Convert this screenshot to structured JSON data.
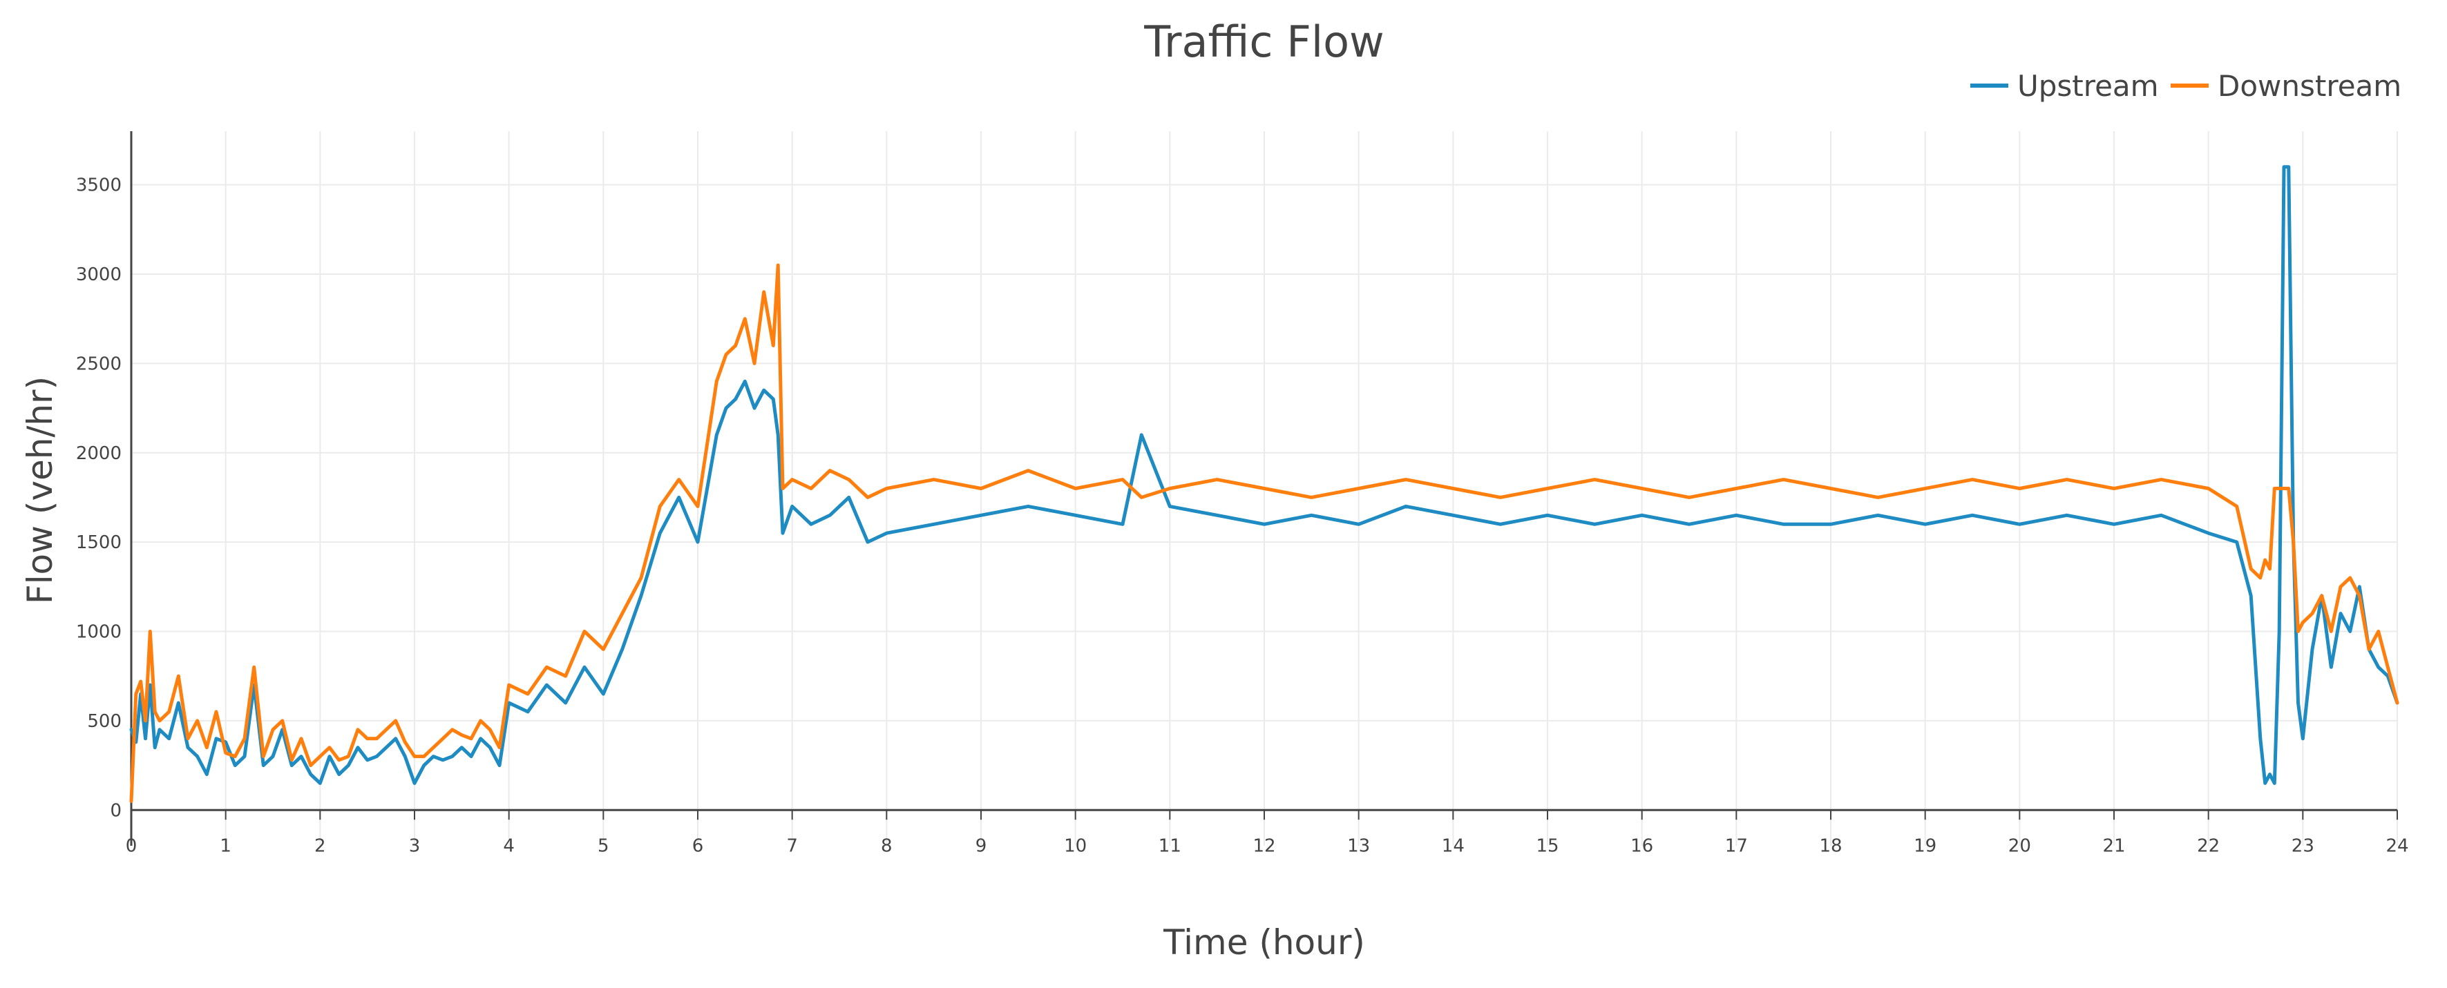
{
  "chart_data": {
    "type": "line",
    "title": "Traffic Flow",
    "xlabel": "Time (hour)",
    "ylabel": "Flow (veh/hr)",
    "xlim": [
      0,
      24
    ],
    "ylim": [
      -200,
      3800
    ],
    "x_ticks": [
      0,
      1,
      2,
      3,
      4,
      5,
      6,
      7,
      8,
      9,
      10,
      11,
      12,
      13,
      14,
      15,
      16,
      17,
      18,
      19,
      20,
      21,
      22,
      23,
      24
    ],
    "y_ticks": [
      0,
      500,
      1000,
      1500,
      2000,
      2500,
      3000,
      3500
    ],
    "grid": true,
    "legend_position": "top-right",
    "series": [
      {
        "name": "Upstream",
        "color": "#1f8bc3",
        "x": [
          0,
          0.05,
          0.1,
          0.15,
          0.2,
          0.25,
          0.3,
          0.4,
          0.5,
          0.6,
          0.7,
          0.8,
          0.9,
          1.0,
          1.1,
          1.2,
          1.3,
          1.4,
          1.5,
          1.6,
          1.7,
          1.8,
          1.9,
          2.0,
          2.1,
          2.2,
          2.3,
          2.4,
          2.5,
          2.6,
          2.7,
          2.8,
          2.9,
          3.0,
          3.1,
          3.2,
          3.3,
          3.4,
          3.5,
          3.6,
          3.7,
          3.8,
          3.9,
          4.0,
          4.2,
          4.4,
          4.6,
          4.8,
          5.0,
          5.2,
          5.4,
          5.6,
          5.8,
          6.0,
          6.2,
          6.3,
          6.4,
          6.5,
          6.6,
          6.7,
          6.8,
          6.85,
          6.9,
          7.0,
          7.2,
          7.4,
          7.6,
          7.8,
          8.0,
          8.5,
          9.0,
          9.5,
          10.0,
          10.5,
          10.7,
          11.0,
          11.5,
          12.0,
          12.5,
          13.0,
          13.5,
          14.0,
          14.5,
          15.0,
          15.5,
          16.0,
          16.5,
          17.0,
          17.5,
          18.0,
          18.5,
          19.0,
          19.5,
          20.0,
          20.5,
          21.0,
          21.5,
          22.0,
          22.3,
          22.45,
          22.55,
          22.6,
          22.65,
          22.7,
          22.75,
          22.8,
          22.85,
          22.9,
          22.95,
          23.0,
          23.1,
          23.2,
          23.3,
          23.4,
          23.5,
          23.6,
          23.7,
          23.8,
          23.9,
          24.0
        ],
        "values": [
          450,
          380,
          650,
          400,
          700,
          350,
          450,
          400,
          600,
          350,
          300,
          200,
          400,
          380,
          250,
          300,
          700,
          250,
          300,
          450,
          250,
          300,
          200,
          150,
          300,
          200,
          250,
          350,
          280,
          300,
          350,
          400,
          300,
          150,
          250,
          300,
          280,
          300,
          350,
          300,
          400,
          350,
          250,
          600,
          550,
          700,
          600,
          800,
          650,
          900,
          1200,
          1550,
          1750,
          1500,
          2100,
          2250,
          2300,
          2400,
          2250,
          2350,
          2300,
          2100,
          1550,
          1700,
          1600,
          1650,
          1750,
          1500,
          1550,
          1600,
          1650,
          1700,
          1650,
          1600,
          2100,
          1700,
          1650,
          1600,
          1650,
          1600,
          1700,
          1650,
          1600,
          1650,
          1600,
          1650,
          1600,
          1650,
          1600,
          1600,
          1650,
          1600,
          1650,
          1600,
          1650,
          1600,
          1650,
          1550,
          1500,
          1200,
          400,
          150,
          200,
          150,
          1000,
          3600,
          3600,
          1500,
          600,
          400,
          900,
          1200,
          800,
          1100,
          1000,
          1250,
          900,
          800,
          750,
          600
        ]
      },
      {
        "name": "Downstream",
        "color": "#ff7f0e",
        "x": [
          0,
          0.05,
          0.1,
          0.15,
          0.2,
          0.25,
          0.3,
          0.4,
          0.5,
          0.6,
          0.7,
          0.8,
          0.9,
          1.0,
          1.1,
          1.2,
          1.3,
          1.4,
          1.5,
          1.6,
          1.7,
          1.8,
          1.9,
          2.0,
          2.1,
          2.2,
          2.3,
          2.4,
          2.5,
          2.6,
          2.7,
          2.8,
          2.9,
          3.0,
          3.1,
          3.2,
          3.3,
          3.4,
          3.5,
          3.6,
          3.7,
          3.8,
          3.9,
          4.0,
          4.2,
          4.4,
          4.6,
          4.8,
          5.0,
          5.2,
          5.4,
          5.6,
          5.8,
          6.0,
          6.2,
          6.3,
          6.4,
          6.5,
          6.6,
          6.7,
          6.8,
          6.85,
          6.9,
          7.0,
          7.2,
          7.4,
          7.6,
          7.8,
          8.0,
          8.5,
          9.0,
          9.5,
          10.0,
          10.5,
          10.7,
          11.0,
          11.5,
          12.0,
          12.5,
          13.0,
          13.5,
          14.0,
          14.5,
          15.0,
          15.5,
          16.0,
          16.5,
          17.0,
          17.5,
          18.0,
          18.5,
          19.0,
          19.5,
          20.0,
          20.5,
          21.0,
          21.5,
          22.0,
          22.3,
          22.45,
          22.55,
          22.6,
          22.65,
          22.7,
          22.75,
          22.8,
          22.85,
          22.9,
          22.95,
          23.0,
          23.1,
          23.2,
          23.3,
          23.4,
          23.5,
          23.6,
          23.7,
          23.8,
          23.9,
          24.0
        ],
        "values": [
          50,
          650,
          720,
          500,
          1000,
          550,
          500,
          550,
          750,
          400,
          500,
          350,
          550,
          320,
          300,
          400,
          800,
          300,
          450,
          500,
          280,
          400,
          250,
          300,
          350,
          280,
          300,
          450,
          400,
          400,
          450,
          500,
          380,
          300,
          300,
          350,
          400,
          450,
          420,
          400,
          500,
          450,
          350,
          700,
          650,
          800,
          750,
          1000,
          900,
          1100,
          1300,
          1700,
          1850,
          1700,
          2400,
          2550,
          2600,
          2750,
          2500,
          2900,
          2600,
          3050,
          1800,
          1850,
          1800,
          1900,
          1850,
          1750,
          1800,
          1850,
          1800,
          1900,
          1800,
          1850,
          1750,
          1800,
          1850,
          1800,
          1750,
          1800,
          1850,
          1800,
          1750,
          1800,
          1850,
          1800,
          1750,
          1800,
          1850,
          1800,
          1750,
          1800,
          1850,
          1800,
          1850,
          1800,
          1850,
          1800,
          1700,
          1350,
          1300,
          1400,
          1350,
          1800,
          1800,
          1800,
          1800,
          1500,
          1000,
          1050,
          1100,
          1200,
          1000,
          1250,
          1300,
          1200,
          900,
          1000,
          800,
          600
        ]
      }
    ]
  }
}
